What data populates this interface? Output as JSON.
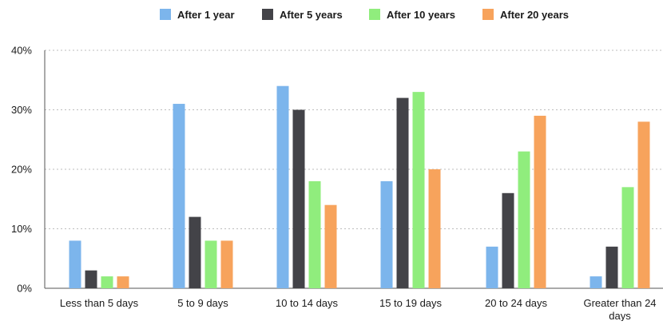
{
  "chart_data": {
    "type": "bar",
    "title": "",
    "xlabel": "",
    "ylabel": "",
    "categories": [
      [
        "Less than 5 days"
      ],
      [
        "5 to 9 days"
      ],
      [
        "10 to 14 days"
      ],
      [
        "15 to 19 days"
      ],
      [
        "20 to 24 days"
      ],
      [
        "Greater than 24",
        "days"
      ]
    ],
    "series": [
      {
        "name": "After 1 year",
        "color": "#7cb5ec",
        "values": [
          8,
          31,
          34,
          18,
          7,
          2
        ]
      },
      {
        "name": "After 5 years",
        "color": "#434348",
        "values": [
          3,
          12,
          30,
          32,
          16,
          7
        ]
      },
      {
        "name": "After 10 years",
        "color": "#90ed7d",
        "values": [
          2,
          8,
          18,
          33,
          23,
          17
        ]
      },
      {
        "name": "After 20 years",
        "color": "#f7a35c",
        "values": [
          2,
          8,
          14,
          20,
          29,
          28
        ]
      }
    ],
    "ylim": [
      0,
      40
    ],
    "yticks": [
      0,
      10,
      20,
      30,
      40
    ],
    "ytick_labels": [
      "0%",
      "10%",
      "20%",
      "30%",
      "40%"
    ],
    "grid": "dotted horizontal",
    "legend_position": "top-center"
  }
}
